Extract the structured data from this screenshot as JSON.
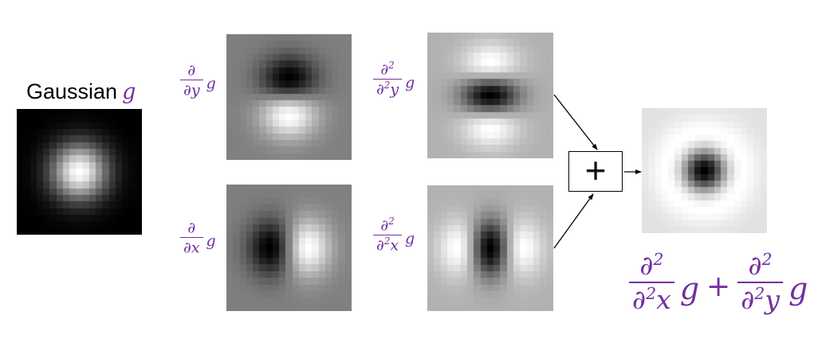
{
  "title": {
    "text": "Gaussian",
    "symbol": "g"
  },
  "panel_labels": {
    "dy": {
      "num_base": "∂",
      "num_sup": "",
      "den_base": "∂",
      "den_sup": "",
      "den_var": "y",
      "operand": "g"
    },
    "dx": {
      "num_base": "∂",
      "num_sup": "",
      "den_base": "∂",
      "den_sup": "",
      "den_var": "x",
      "operand": "g"
    },
    "d2y": {
      "num_base": "∂",
      "num_sup": "2",
      "den_base": "∂",
      "den_sup": "2",
      "den_var": "y",
      "operand": "g"
    },
    "d2x": {
      "num_base": "∂",
      "num_sup": "2",
      "den_base": "∂",
      "den_sup": "2",
      "den_var": "x",
      "operand": "g"
    }
  },
  "sum_operator": "+",
  "result_formula": {
    "term1": {
      "num_base": "∂",
      "num_sup": "2",
      "den_base": "∂",
      "den_sup": "2",
      "den_var": "x",
      "operand": "g"
    },
    "plus": "+",
    "term2": {
      "num_base": "∂",
      "num_sup": "2",
      "den_base": "∂",
      "den_sup": "2",
      "den_var": "y",
      "operand": "g"
    }
  },
  "colors": {
    "accent_purple": "#7030A0",
    "diagram_black": "#000000"
  },
  "kernels": {
    "grid_size": 19,
    "sigma": 3,
    "images": [
      {
        "name": "gaussian-kernel-image",
        "func": "gaussian"
      },
      {
        "name": "dy-kernel-image",
        "func": "dy"
      },
      {
        "name": "dx-kernel-image",
        "func": "dx"
      },
      {
        "name": "d2y-kernel-image",
        "func": "d2y"
      },
      {
        "name": "d2x-kernel-image",
        "func": "d2x"
      },
      {
        "name": "laplacian-kernel-image",
        "func": "log"
      }
    ]
  }
}
